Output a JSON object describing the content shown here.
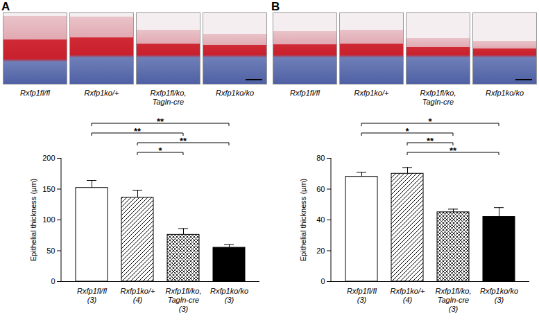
{
  "chart_data": [
    {
      "type": "bar",
      "panel": "A",
      "image_labels": [
        "Rxfp1fl/fl",
        "Rxfp1ko/+",
        "Rxfp1fl/ko, Tagln-cre",
        "Rxfp1ko/ko"
      ],
      "categories": [
        "Rxfp1fl/fl",
        "Rxfp1ko/+",
        "Rxfp1fl/ko, Tagln-cre",
        "Rxfp1ko/ko"
      ],
      "n": [
        "(3)",
        "(4)",
        "(3)",
        "(3)"
      ],
      "values": [
        152,
        136,
        76,
        55
      ],
      "errors": [
        12,
        12,
        10,
        5
      ],
      "y_label": "Epithelial thickness (µm)",
      "ylim": [
        0,
        200
      ],
      "yticks": [
        0,
        50,
        100,
        150,
        200
      ],
      "significance": [
        {
          "from": "Rxfp1fl/fl",
          "to": "Rxfp1ko/ko",
          "label": "**"
        },
        {
          "from": "Rxfp1fl/fl",
          "to": "Rxfp1fl/ko, Tagln-cre",
          "label": "**"
        },
        {
          "from": "Rxfp1ko/+",
          "to": "Rxfp1ko/ko",
          "label": "**"
        },
        {
          "from": "Rxfp1ko/+",
          "to": "Rxfp1fl/ko, Tagln-cre",
          "label": "*"
        }
      ]
    },
    {
      "type": "bar",
      "panel": "B",
      "image_labels": [
        "Rxfp1fl/fl",
        "Rxfp1ko/+",
        "Rxfp1fl/ko, Tagln-cre",
        "Rxfp1ko/ko"
      ],
      "categories": [
        "Rxfp1fl/fl",
        "Rxfp1ko/+",
        "Rxfp1fl/ko, Tagln-cre",
        "Rxfp1ko/ko"
      ],
      "n": [
        "(3)",
        "(4)",
        "(3)",
        "(3)"
      ],
      "values": [
        68,
        70,
        45,
        42
      ],
      "errors": [
        3,
        4,
        2,
        6
      ],
      "y_label": "Epithelial thickness (µm)",
      "ylim": [
        0,
        80
      ],
      "yticks": [
        0,
        20,
        40,
        60,
        80
      ],
      "significance": [
        {
          "from": "Rxfp1fl/fl",
          "to": "Rxfp1ko/ko",
          "label": "*"
        },
        {
          "from": "Rxfp1fl/fl",
          "to": "Rxfp1fl/ko, Tagln-cre",
          "label": "*"
        },
        {
          "from": "Rxfp1ko/+",
          "to": "Rxfp1fl/ko, Tagln-cre",
          "label": "**"
        },
        {
          "from": "Rxfp1ko/+",
          "to": "Rxfp1ko/ko",
          "label": "**"
        }
      ]
    }
  ]
}
